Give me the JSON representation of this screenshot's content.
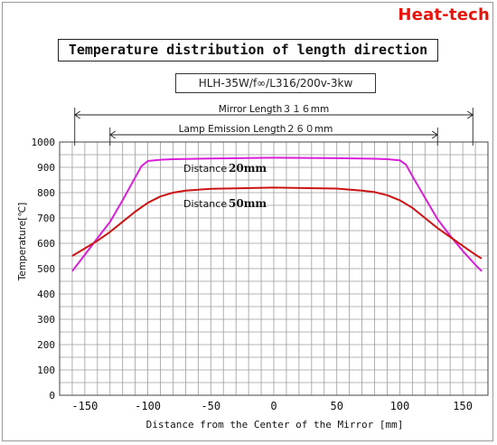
{
  "brand": {
    "logo_text": "Heat-tech",
    "logo_color": "#e8140a"
  },
  "header": {
    "title": "Temperature distribution of length direction",
    "subtitle": "HLH-35W/f∞/L316/200v-3kw"
  },
  "dimensions": {
    "mirror_length_label": "Mirror Length３１６mm",
    "mirror_length_mm": 316,
    "lamp_length_label": "Lamp Emission Length２６０mm",
    "lamp_length_mm": 260
  },
  "chart_data": {
    "type": "line",
    "xlabel": "Distance from the Center of the Mirror [mm]",
    "ylabel": "Temperature[℃]",
    "xlim": [
      -170,
      170
    ],
    "ylim": [
      0,
      1000
    ],
    "xticks": [
      -150,
      -100,
      -50,
      0,
      50,
      100,
      150
    ],
    "yticks": [
      0,
      100,
      200,
      300,
      400,
      500,
      600,
      700,
      800,
      900,
      1000
    ],
    "grid": true,
    "series": [
      {
        "name": "Distance 20mm",
        "label_prefix": "Distance",
        "label_value": "20mm",
        "color": "#d81ed8",
        "x": [
          -160,
          -150,
          -140,
          -130,
          -120,
          -110,
          -105,
          -100,
          -90,
          -80,
          -50,
          0,
          50,
          80,
          90,
          100,
          105,
          110,
          120,
          130,
          140,
          150,
          160,
          165
        ],
        "y": [
          490,
          555,
          620,
          685,
          770,
          860,
          905,
          925,
          930,
          932,
          935,
          938,
          936,
          934,
          932,
          928,
          910,
          865,
          780,
          695,
          630,
          570,
          515,
          490
        ]
      },
      {
        "name": "Distance 50mm",
        "label_prefix": "Distance",
        "label_value": "50mm",
        "color": "#cc1414",
        "x": [
          -160,
          -150,
          -140,
          -130,
          -120,
          -110,
          -100,
          -90,
          -80,
          -70,
          -50,
          0,
          50,
          70,
          80,
          90,
          100,
          110,
          120,
          130,
          140,
          150,
          160,
          165
        ],
        "y": [
          550,
          580,
          610,
          645,
          685,
          725,
          760,
          785,
          800,
          808,
          815,
          820,
          816,
          808,
          802,
          790,
          770,
          740,
          700,
          660,
          625,
          590,
          555,
          540
        ]
      }
    ]
  }
}
